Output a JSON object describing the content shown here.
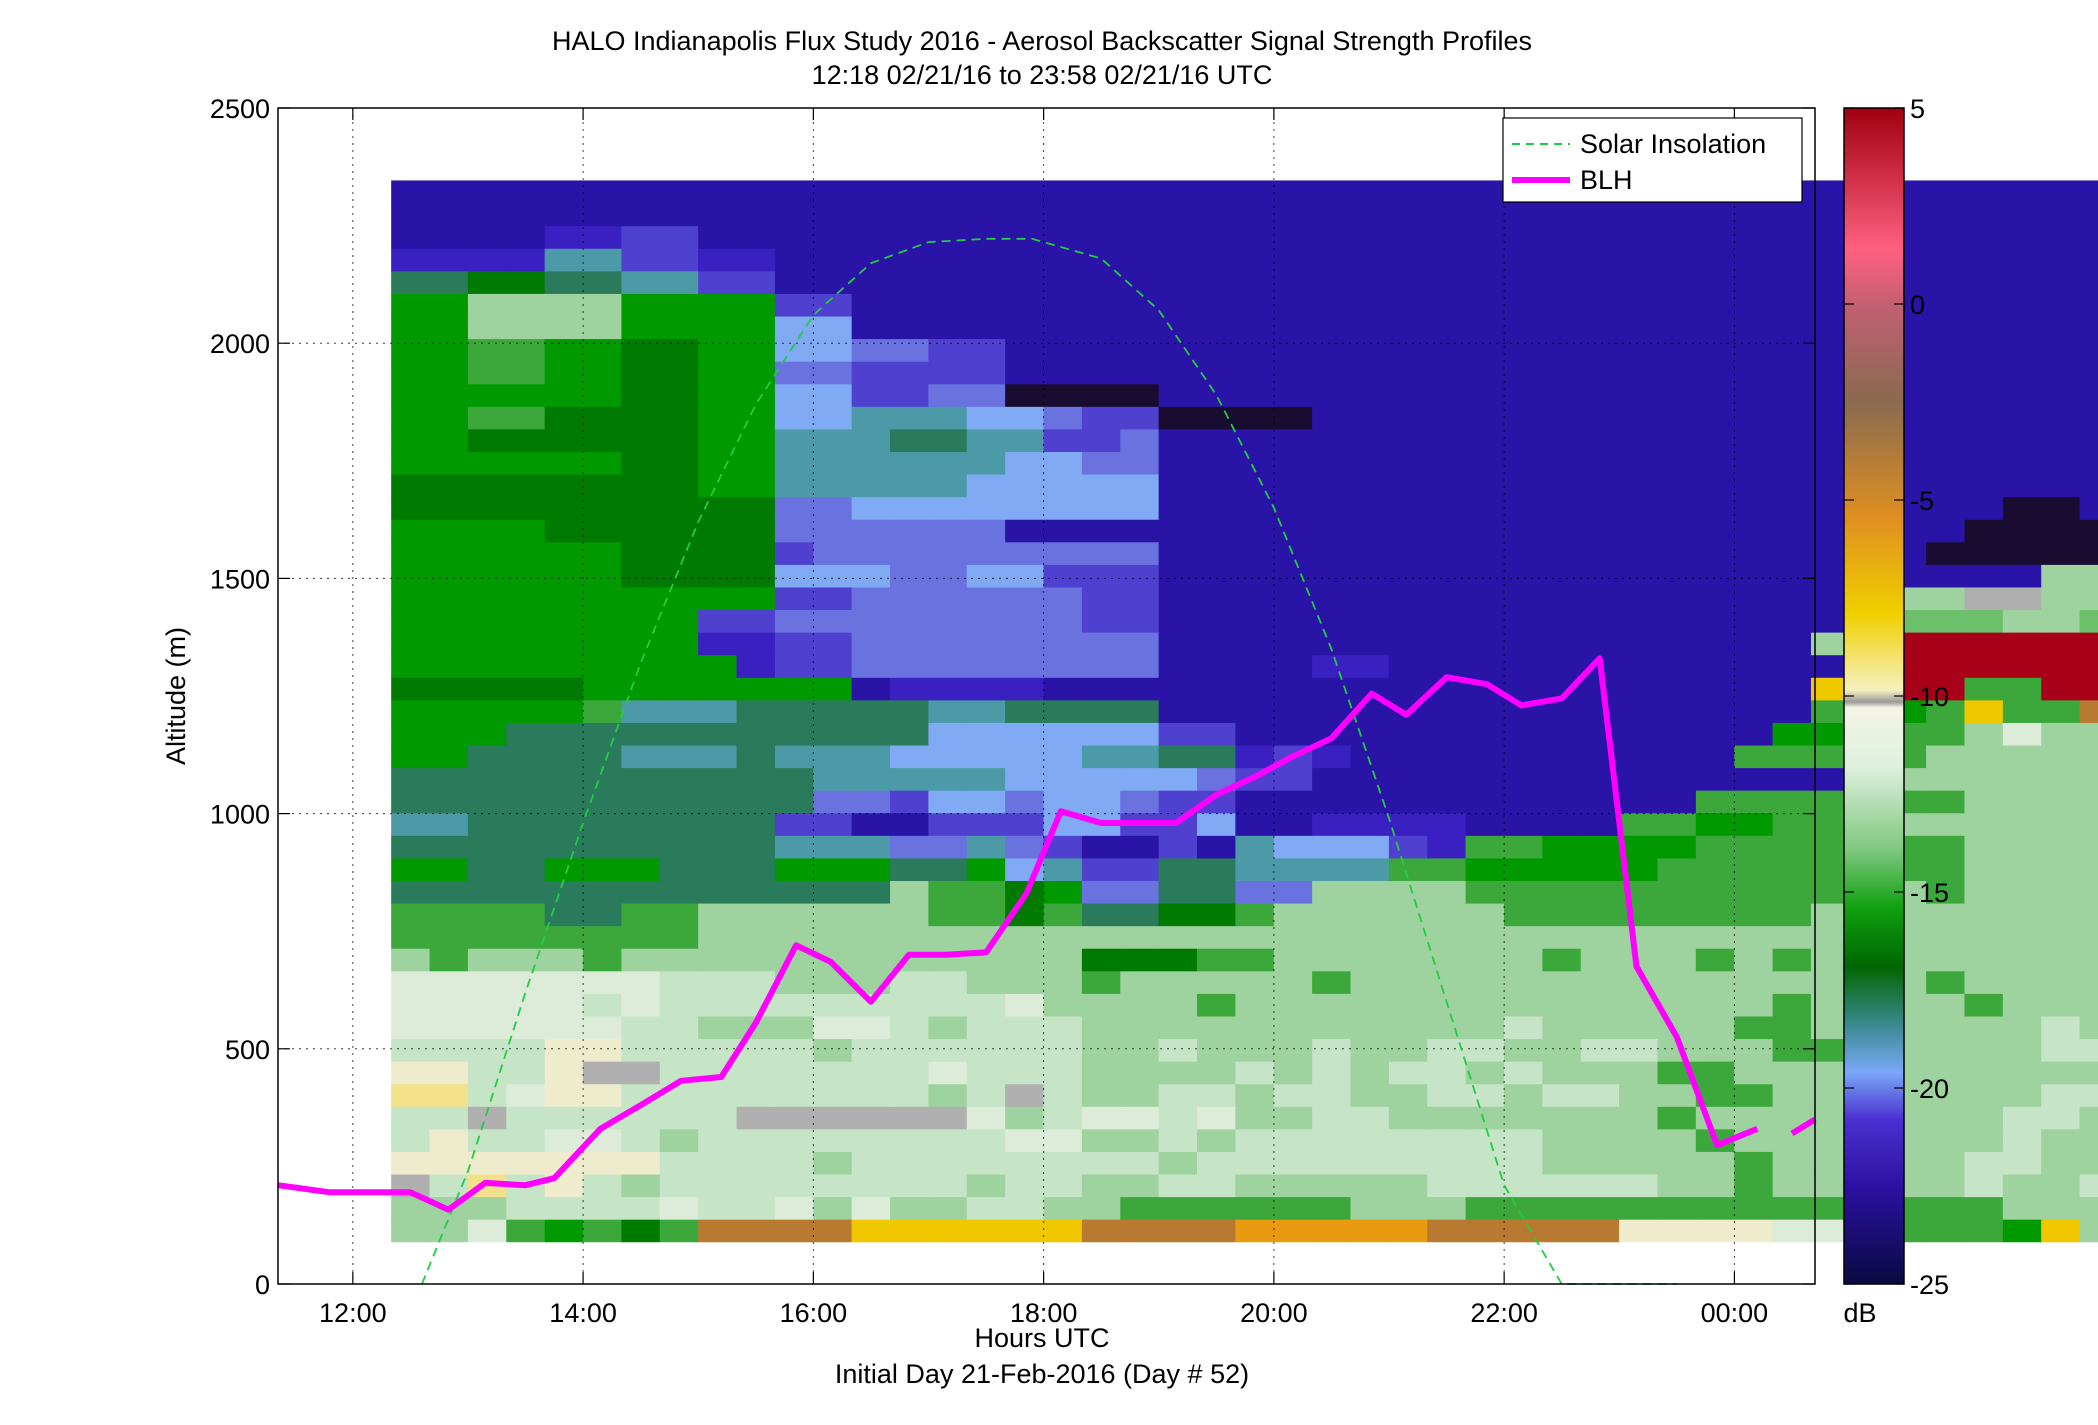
{
  "chart_data": {
    "type": "heatmap",
    "title": "HALO Indianapolis Flux Study 2016 - Aerosol Backscatter Signal Strength Profiles",
    "subtitle": "12:18 02/21/16 to 23:58 02/21/16  UTC",
    "xlabel": "Hours UTC",
    "xlabel2": "Initial Day 21-Feb-2016 (Day # 52)",
    "ylabel": "Altitude (m)",
    "xlim": [
      11.35,
      24.7
    ],
    "ylim": [
      0,
      2500
    ],
    "x_ticks": [
      12,
      14,
      16,
      18,
      20,
      22,
      24
    ],
    "x_tick_labels": [
      "12:00",
      "14:00",
      "16:00",
      "18:00",
      "20:00",
      "22:00",
      "00:00"
    ],
    "y_ticks": [
      0,
      500,
      1000,
      1500,
      2000,
      2500
    ],
    "y_tick_labels": [
      "0",
      "500",
      "1000",
      "1500",
      "2000",
      "2500"
    ],
    "grid": true,
    "legend_position": "top-right",
    "colorbar": {
      "label": "dB",
      "min": -25,
      "max": 5,
      "ticks": [
        5,
        0,
        -5,
        -10,
        -15,
        -20,
        -25
      ],
      "tick_labels": [
        "5",
        "0",
        "-5",
        "-10",
        "-15",
        "-20",
        "-25"
      ]
    },
    "heatmap": {
      "time_start": 12.333,
      "time_step": 0.3333,
      "alt_start": 90,
      "alt_step": 48,
      "palette": {
        "A": "#201060",
        "B": "#2a14a8",
        "C": "#3a20c0",
        "D": "#5040d0",
        "E": "#6a72e0",
        "F": "#80aaf4",
        "G": "#4c9aa8",
        "H": "#2a7a5c",
        "I": "#007a00",
        "J": "#009a00",
        "K": "#3ca83c",
        "L": "#6cc06c",
        "M": "#9ed29e",
        "N": "#c6e4c6",
        "O": "#dcecd8",
        "P": "#eeeccc",
        "Q": "#f2e08a",
        "R": "#b0b0b0",
        "S": "#f0c800",
        "T": "#e89a10",
        "U": "#b87a30",
        "V": "#9c7050",
        "W": "#e8406a",
        "X": "#a80018",
        "Y": "#180c30"
      },
      "rows": [
        "MMOKJKIKUUUUSSSSSSUUUUTTTTTUUUUUPPPPOOMKKKJSMOMM",
        "MMMNNNNONNOMOMMNNMMKKKKKKMMMKKKKKKKKKKKKKKMMMOMM",
        "RNQNPNMNNNNNNNNMNNMMNNMMMMMNNNNNNMMKMMMMMNMMNMOM",
        "PPPPPPPNNNNMNNNNNNNNMNNNNNNNNNMMMMMKMMMMMNNMMNNM",
        "NPNNOONMNNNNNNNNOOMMNMNNNNNNNNMMMMKMMMMMMMNMMONM",
        "NNRNNNNNNRRRRRROMNOONOMMNNMMMMMMMKMMMMMMMMNNMRNM",
        "QQNOPPNNNNNNNNMNRNMMNNMNNMMNNMNNMMKKMMMMMMMNNPPM",
        "PPNNPRRNNNNNNNONNNMMMMNMNMNNMNMMMKKMMMMMMMMMMPPQ",
        "NNNNPPNNNNNMNNNNNNMMNMMMNMMNNMMNNMMMKKMMMMMNNRPQ",
        "OOOOOONNMMMOONMNNNMMMMMMMMMMMNMMMMMKKMMMMMMNMPPP",
        "OOOOONONNNNNNNNNOMMMMKMMMMMMMMMMMMMMKMMMMKMMMNOM",
        "OOOOOOONNNMMMNNMMMKMMMMMKMMMMMMMMMMMMMMMKMMMMROM",
        "MKMMMKMMMMMMMMMMMMIIIKKMMMMMMMKMMMKMKMKMMMMMMMRM",
        "KKKKKKKKMMMMMMMMMMMMMMMMMMMMMMMMMMMMMMKMMMMMMMMM",
        "KKKKHHKKMMMMMMKKIKHHIIKMMMMMMKKKKKKKKMMMMMMMMOOM",
        "HHHHHHHHHHHHHMKKIJEEHHEEMMMMKKKKKKKKKKKMKMMMMMOM",
        "JJHHJJJHHHJJJHHJFGDDHHGGGGKKJJJJJKKKKKKKKMMMMKMM",
        "HHHHHHHHHHGGGEEGEDBBDBGFFFDCKKJJJJKKKKKKKMMMMKMM",
        "GGHHHHHHHHDDBBDDDFFDDFBBCCCCBBBBKKJJKKKMMMMMMRMM",
        "HHHHHHHHHHHEEDFFEFFEDDBBBBBBBBBBBBKKKKKKKMMMMPMM",
        "HHHHHHHHHHHGGGGGFFFFFEDDBBBBBBBBBBBBBBBMMMMMMPMM",
        "JJHHHHGGGHGGGFFFFFGGHHCDCBBBBBBBBBBKKKKKMMMMMMMM",
        "JJJHHHHHHHHHHHFFFFFFDDBBBBBBBBBBBBBBJJKKKMOMMSSN",
        "JJJJJKGGGHHHHHGGHHHHBBBBBBBBBBBBBBBBBKJJKSKKUUVV",
        "IIIIIJJJJJJJBCCCCBBBBBBBBBBBBBBBBBBBBSXXXKKXXXXX",
        "JJJJJJJJJCDDEEEEEEEEBBBBCCBBBBBBBBBBBBCXXXXXXXXD",
        "JJJJJJJJCCDDEEEEEEEEBBBBBBBBBBBBBBBBBMMXXXXXXXXX",
        "JJJJJJJJDDEEEEEEEEDDBBBBBBBBBBBBBBBBBBBLLLMMLWWW",
        "JJJJJJJJJJDDEEEEEEDDBBBBBBBBBBBBBBBBBBMMMRRMMMWB",
        "JJJJJJIIIIFFFEEFFDDDBBBBBBBBBBBBBBBBBBBBBBBMMMJJ",
        "JJJJJJIIIIDEEEEEEEEEBBBBBBBBBBBBBBBBBBBBYYYYYYYY",
        "JJJJIIIIIIEEEEEEBBBBBBBBBBBBBBBBBBBBBBBBBYYYYYYY",
        "IIIIIIIIIIEEFFFFFFFFBBBBBBBBBBBBBBBBBBBBBBYYBBBY",
        "IIIIIIIIJJGGGGGFFFFFBBBBBBBBBBBBBBBBBBBBBBBBBBBB",
        "JJJJJJIIJJGGGGGGFFEEBBBBBBBBBBBBBBBBBBBBBBBBBBBB",
        "JJIIIIIIJJGGGHHGGDDEBBBBBBBBBBBBBBBBBBBBBBBBBBBB",
        "JJKKIIIIJJFFGGGFFEDDYYYYBBBBBBBBBBBBBBBBBBBBBBBB",
        "JJJJJJIIJJFFDDEEYYYYBBBBBBBBBBBBBBBBBBBBBBBBBBBB",
        "JJKKJJIIJJEEDDDDBBBBBBBBBBBBBBBBBBBBBBBBBBBBBBBB",
        "JJKKJJIIJJFFEEDDBBBBBBBBBBBBBBBBBBBBBBBBBBBBBBBC",
        "JJMMMMJJJJFFBBBBBBBBBBBBBBBBBBBBBBBBBBBBBBBBBFBC",
        "JJMMMMJJJJDDBBBBBBBBBBBBBBBBBBBBBBBBBBBBBBBBBBBJ",
        "HHIIHHGGDDBBBBBBBBBBBBBBBBBBBBBBBBBBBBBBBBBBBBBJ",
        "CCCCGGDDCCBBBBBBBBBBBBBBBBBBBBBBBBBBBBBBBBBBBGCJ",
        "BBBBCCDDBBBBBBBBBBBBBBBBBBBBBBBBBBBBBBBBBBBBBGCI",
        "BBBBBBBBBBBBBBBBBBBBBBBBBBBBBBBBBBBBBBBBBBBBBGAI",
        "BBBBBBBBBBBBBBBBBBBBBBBBBBBBBBBBBBBBBBBBBBBBBGAI"
      ]
    },
    "series": [
      {
        "name": "Solar Insolation",
        "style": "dashed",
        "color": "#22cc44",
        "x": [
          12.6,
          13.0,
          13.5,
          14.0,
          14.5,
          15.0,
          15.5,
          16.0,
          16.5,
          17.0,
          17.5,
          17.9,
          18.5,
          19.0,
          19.5,
          20.0,
          20.5,
          21.0,
          21.5,
          22.0,
          22.5,
          23.0,
          23.5
        ],
        "y": [
          0,
          240,
          620,
          980,
          1320,
          1620,
          1870,
          2060,
          2170,
          2215,
          2222,
          2222,
          2180,
          2070,
          1890,
          1650,
          1350,
          990,
          600,
          210,
          0,
          0,
          0
        ]
      },
      {
        "name": "BLH",
        "style": "solid",
        "color": "#ff00ff",
        "x": [
          11.35,
          11.8,
          12.2,
          12.5,
          12.83,
          13.15,
          13.5,
          13.75,
          14.15,
          14.5,
          14.85,
          15.2,
          15.5,
          15.85,
          16.15,
          16.5,
          16.83,
          17.15,
          17.5,
          17.85,
          18.15,
          18.5,
          18.85,
          19.15,
          19.5,
          19.85,
          20.15,
          20.5,
          20.85,
          21.15,
          21.5,
          21.85,
          22.15,
          22.5,
          22.83,
          23.15,
          23.5,
          23.85,
          24.2
        ],
        "y": [
          210,
          195,
          195,
          195,
          158,
          215,
          210,
          225,
          330,
          380,
          432,
          440,
          555,
          720,
          685,
          600,
          700,
          700,
          705,
          830,
          1005,
          980,
          980,
          980,
          1040,
          1080,
          1120,
          1160,
          1255,
          1210,
          1290,
          1275,
          1230,
          1245,
          1330,
          675,
          525,
          295,
          330
        ],
        "gap_after_x": 24.2,
        "tail_x": [
          24.5,
          24.7
        ],
        "tail_y": [
          320,
          350
        ]
      }
    ]
  }
}
